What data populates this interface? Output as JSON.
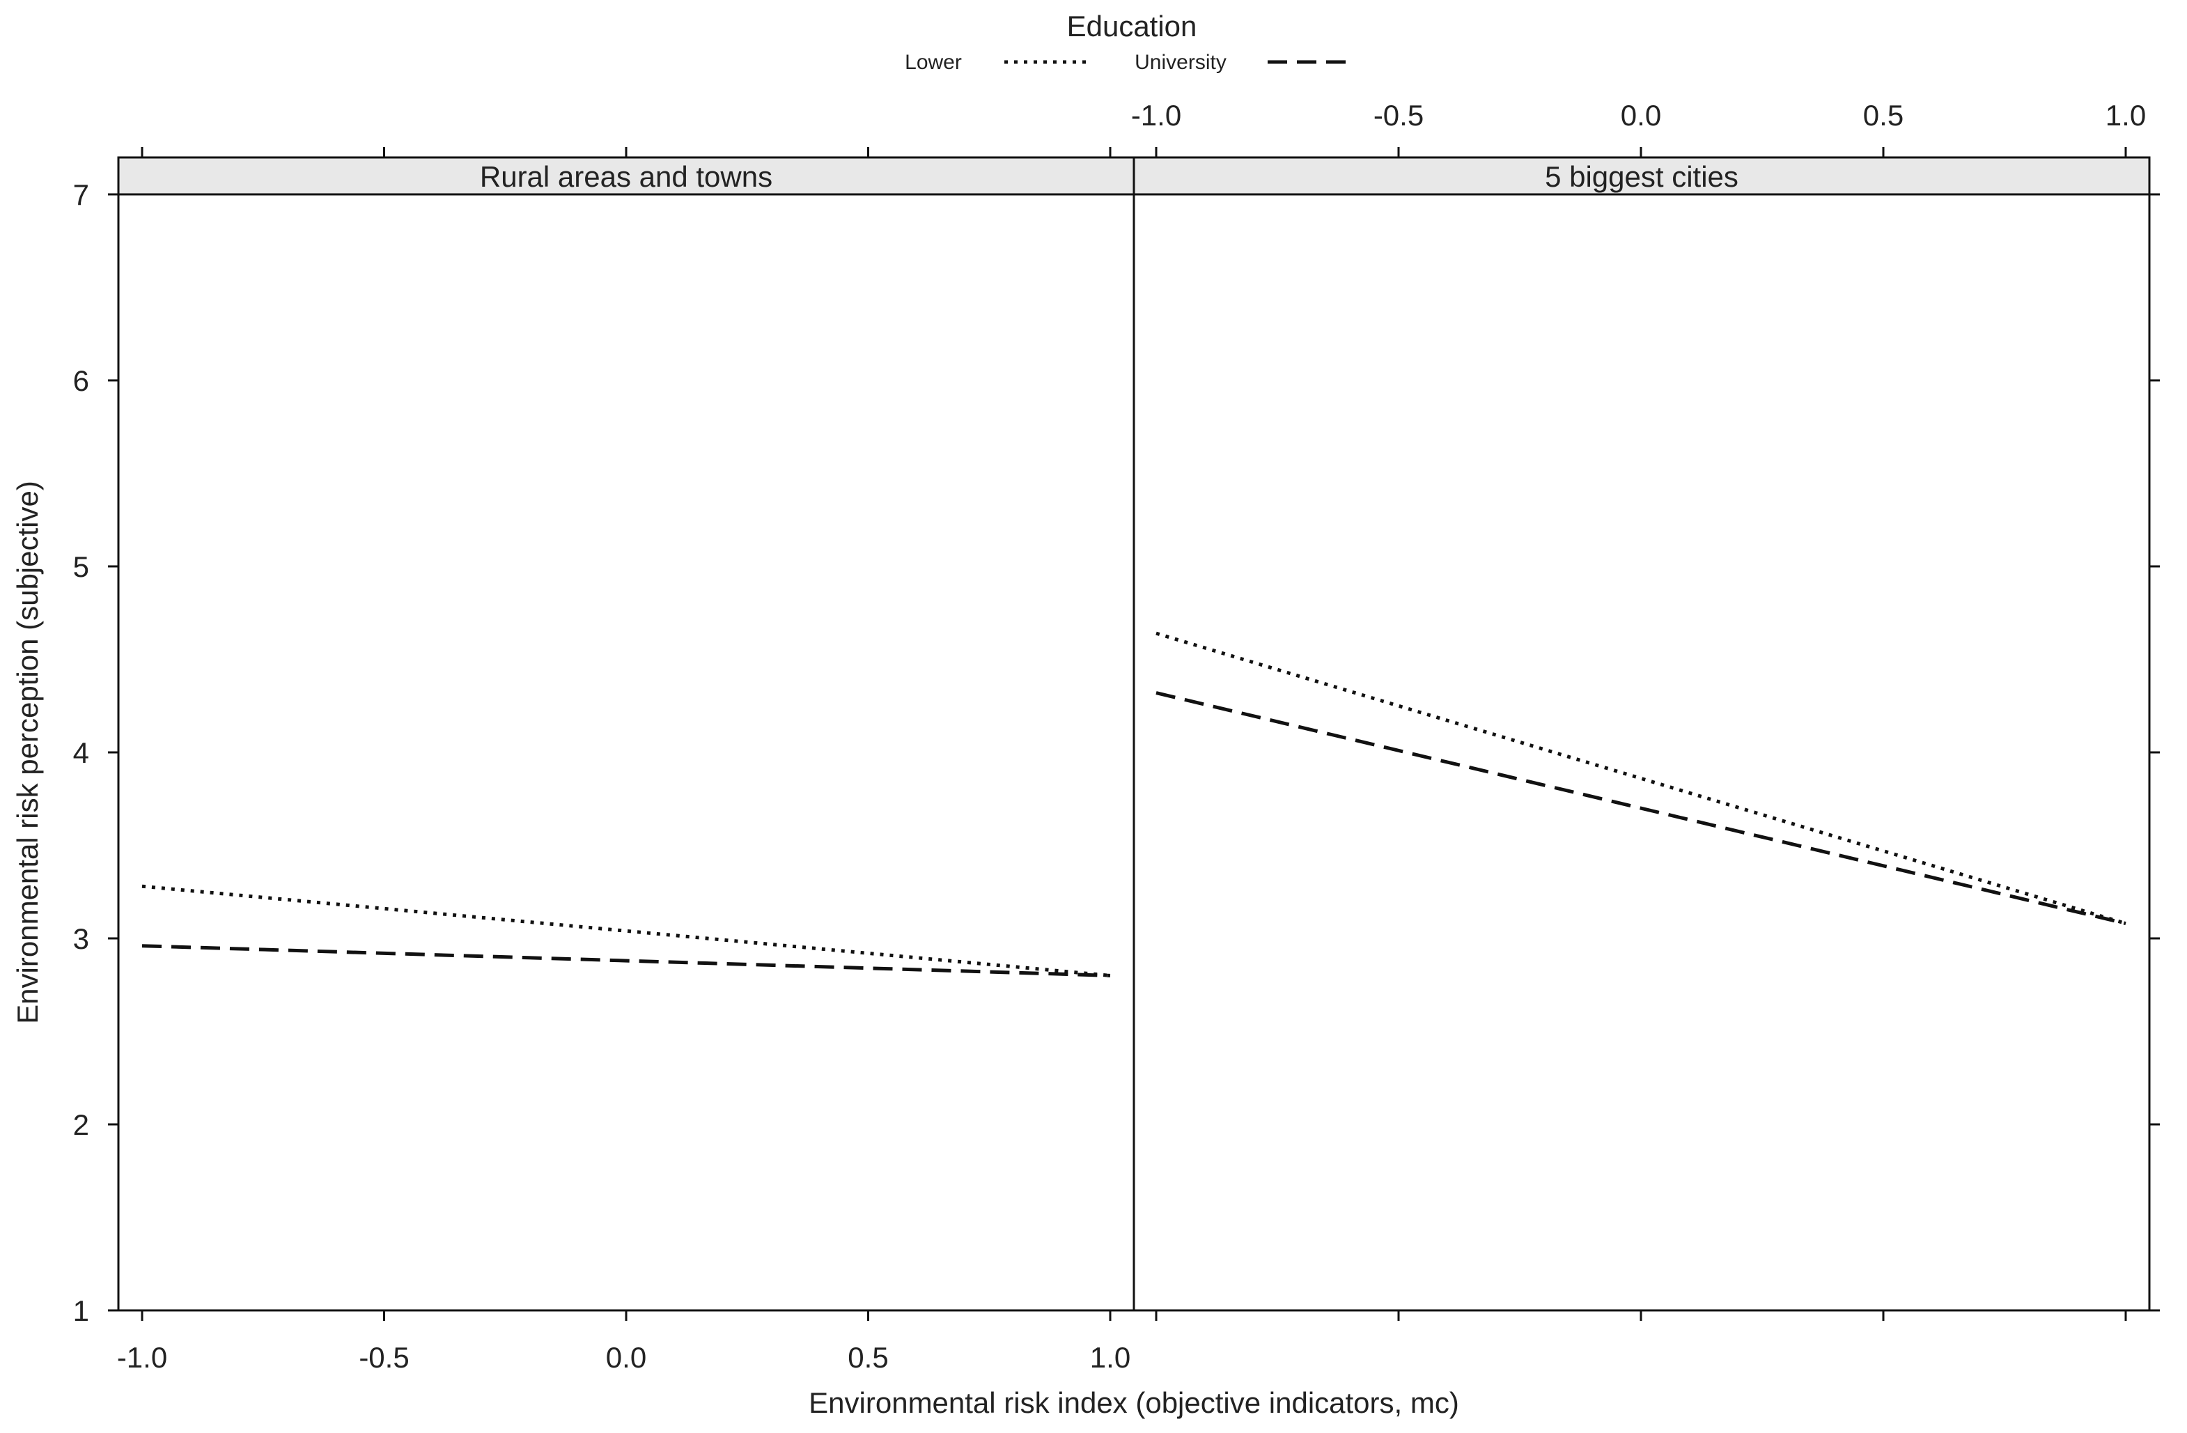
{
  "chart_data": {
    "type": "line",
    "legend": {
      "title": "Education",
      "placement": "top-center",
      "entries": [
        {
          "label": "Lower",
          "style": "dotted"
        },
        {
          "label": "University",
          "style": "dashed"
        }
      ]
    },
    "xlabel": "Environmental risk index (objective indicators, mc)",
    "ylabel": "Environmental risk perception (subjective)",
    "xlim": [
      -1.0,
      1.0
    ],
    "ylim": [
      1,
      7
    ],
    "x_ticks": [
      "-1.0",
      "-0.5",
      "0.0",
      "0.5",
      "1.0"
    ],
    "y_ticks": [
      "1",
      "2",
      "3",
      "4",
      "5",
      "6",
      "7"
    ],
    "grid": false,
    "line_color": "#111111",
    "panels": [
      {
        "label": "Rural areas and towns",
        "series": [
          {
            "name": "Lower",
            "x": [
              -1.0,
              1.0
            ],
            "y": [
              3.28,
              2.8
            ]
          },
          {
            "name": "University",
            "x": [
              -1.0,
              1.0
            ],
            "y": [
              2.96,
              2.8
            ]
          }
        ]
      },
      {
        "label": "5 biggest cities",
        "series": [
          {
            "name": "Lower",
            "x": [
              -1.0,
              1.0
            ],
            "y": [
              4.64,
              3.08
            ]
          },
          {
            "name": "University",
            "x": [
              -1.0,
              1.0
            ],
            "y": [
              4.32,
              3.08
            ]
          }
        ]
      }
    ]
  }
}
